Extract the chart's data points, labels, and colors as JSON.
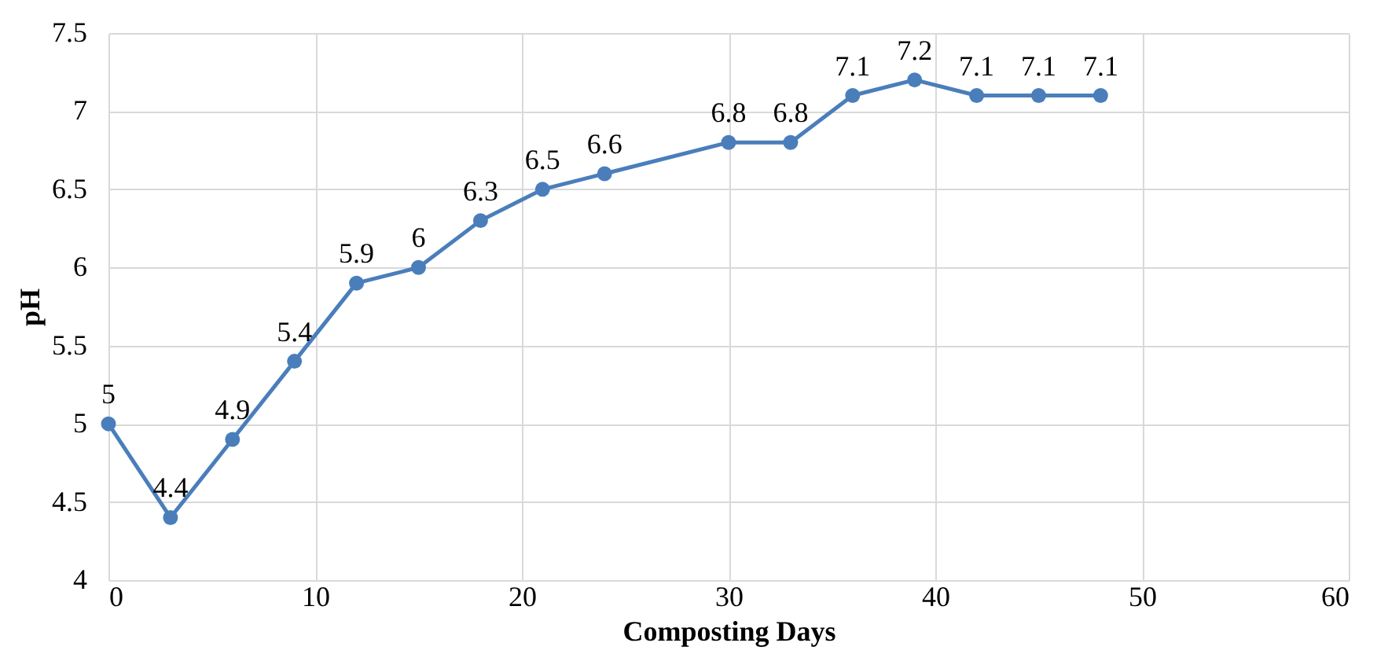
{
  "chart_data": {
    "type": "line",
    "xlabel": "Composting  Days",
    "ylabel": "pH",
    "x": [
      0,
      3,
      6,
      9,
      12,
      15,
      18,
      21,
      24,
      30,
      33,
      36,
      39,
      42,
      45,
      48
    ],
    "series": [
      {
        "color": "#4a7ebb",
        "values": [
          5,
          4.4,
          4.9,
          5.4,
          5.9,
          6,
          6.3,
          6.5,
          6.6,
          6.8,
          6.8,
          7.1,
          7.2,
          7.1,
          7.1,
          7.1
        ]
      }
    ],
    "xlim": [
      0,
      60
    ],
    "xticks": [
      0,
      10,
      20,
      30,
      40,
      50,
      60
    ],
    "ylim": [
      4,
      7.5
    ],
    "yticks": [
      4,
      4.5,
      5,
      5.5,
      6,
      6.5,
      7,
      7.5
    ],
    "grid": true,
    "marker": "circle",
    "line_style": "solid",
    "data_labels": true
  }
}
